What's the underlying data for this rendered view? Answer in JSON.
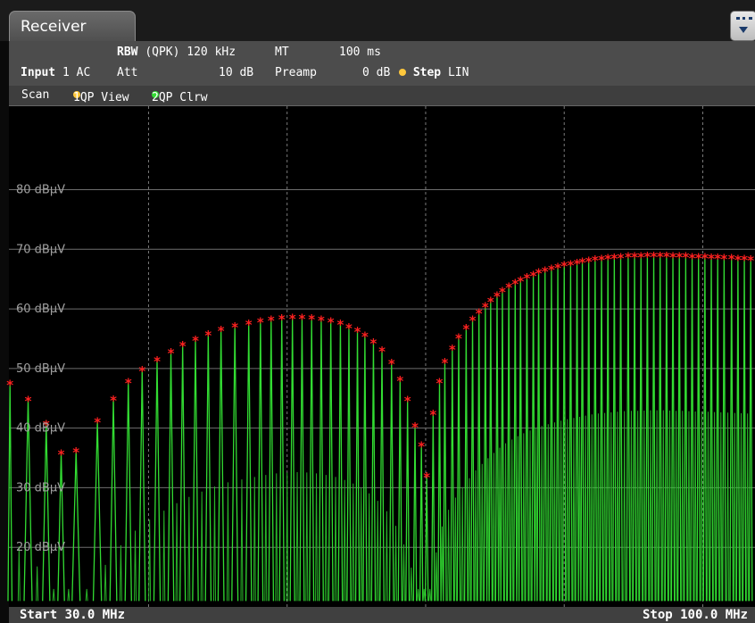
{
  "window": {
    "tab_label": "Receiver"
  },
  "settings": {
    "rbw_label": "RBW",
    "rbw_detector": "(QPK)",
    "rbw_value": "120 kHz",
    "mt_label": "MT",
    "mt_value": "100 ms",
    "input_label": "Input",
    "input_value": "1 AC",
    "att_label": "Att",
    "att_value": "10 dB",
    "preamp_label": "Preamp",
    "preamp_value": "0 dB",
    "step_label": "Step",
    "step_value": "LIN"
  },
  "scan": {
    "label": "Scan",
    "trace1": "1QP View",
    "trace2": "2QP Clrw",
    "trace1_color": "#ffc83c",
    "trace2_color": "#32dc32"
  },
  "footer": {
    "start": "Start 30.0 MHz",
    "stop": "Stop 100.0 MHz"
  },
  "chart_data": {
    "type": "line",
    "title": "",
    "xlabel": "",
    "ylabel": "",
    "xlim": [
      30.0,
      100.0
    ],
    "ylim": [
      10,
      94
    ],
    "x_unit": "MHz",
    "y_unit": "dBµV",
    "grid": true,
    "y_ticks": [
      20,
      30,
      40,
      50,
      60,
      70,
      80
    ],
    "y_tick_labels": [
      "20 dBµV",
      "30 dBµV",
      "40 dBµV",
      "50 dBµV",
      "60 dBµV",
      "70 dBµV",
      "80 dBµV"
    ],
    "x_gridlines": [
      43.1,
      56.1,
      69.1,
      82.1,
      95.1
    ],
    "marker_color": "#ff2020",
    "trace_color": "#32dc32",
    "series": [
      {
        "name": "2QP Clrw",
        "color": "#32dc32",
        "marker": "asterisk",
        "x": [
          30.1,
          31.8,
          33.5,
          34.9,
          36.3,
          38.3,
          39.8,
          41.2,
          42.5,
          43.9,
          45.2,
          46.3,
          47.5,
          48.7,
          49.9,
          51.2,
          52.5,
          53.6,
          54.6,
          55.6,
          56.6,
          57.5,
          58.4,
          59.3,
          60.2,
          61.1,
          61.9,
          62.7,
          63.4,
          64.2,
          65.0,
          65.9,
          66.7,
          67.4,
          68.1,
          68.7,
          69.2,
          69.8,
          70.4,
          70.9,
          71.6,
          72.2,
          72.9,
          73.5,
          74.1,
          74.7,
          75.2,
          75.8,
          76.3,
          76.9,
          77.5,
          78.0,
          78.6,
          79.2,
          79.7,
          80.3,
          80.9,
          81.5,
          82.1,
          82.7,
          83.3,
          83.8,
          84.4,
          85.0,
          85.6,
          86.2,
          86.8,
          87.4,
          88.1,
          88.7,
          89.3,
          89.9,
          90.5,
          91.1,
          91.7,
          92.3,
          92.9,
          93.5,
          94.1,
          94.7,
          95.3,
          95.9,
          96.5,
          97.1,
          97.8,
          98.4,
          99.0,
          99.6
        ],
        "y": [
          47.5,
          44.8,
          40.8,
          35.8,
          36.2,
          41.2,
          44.9,
          47.8,
          49.8,
          51.5,
          52.8,
          54.0,
          54.9,
          55.8,
          56.6,
          57.2,
          57.6,
          58.0,
          58.3,
          58.5,
          58.6,
          58.6,
          58.5,
          58.3,
          58.0,
          57.6,
          57.0,
          56.4,
          55.6,
          54.5,
          53.1,
          51.0,
          48.2,
          44.8,
          40.4,
          37.2,
          32.0,
          42.5,
          47.8,
          51.2,
          53.4,
          55.3,
          56.9,
          58.3,
          59.5,
          60.5,
          61.4,
          62.3,
          63.1,
          63.8,
          64.4,
          64.9,
          65.4,
          65.8,
          66.2,
          66.5,
          66.8,
          67.1,
          67.4,
          67.6,
          67.8,
          68.0,
          68.2,
          68.4,
          68.5,
          68.6,
          68.7,
          68.8,
          68.9,
          68.9,
          68.9,
          69.0,
          69.0,
          69.0,
          69.0,
          68.9,
          68.9,
          68.9,
          68.8,
          68.8,
          68.8,
          68.7,
          68.7,
          68.6,
          68.6,
          68.5,
          68.5,
          68.4
        ]
      }
    ]
  }
}
